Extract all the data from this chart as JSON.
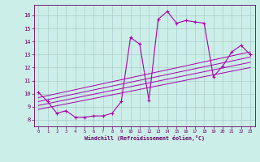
{
  "bg_color": "#cceee8",
  "grid_color": "#aacccc",
  "line_color": "#aa00aa",
  "xlim": [
    -0.5,
    23.5
  ],
  "ylim": [
    7.5,
    16.8
  ],
  "xticks": [
    0,
    1,
    2,
    3,
    4,
    5,
    6,
    7,
    8,
    9,
    10,
    11,
    12,
    13,
    14,
    15,
    16,
    17,
    18,
    19,
    20,
    21,
    22,
    23
  ],
  "yticks": [
    8,
    9,
    10,
    11,
    12,
    13,
    14,
    15,
    16
  ],
  "curve_x": [
    0,
    1,
    2,
    3,
    4,
    5,
    6,
    7,
    8,
    9,
    10,
    11,
    12,
    13,
    14,
    15,
    16,
    17,
    18,
    19,
    20,
    21,
    22,
    23
  ],
  "curve_y": [
    10.1,
    9.4,
    8.5,
    8.7,
    8.2,
    8.2,
    8.3,
    8.3,
    8.5,
    9.4,
    14.3,
    13.8,
    9.5,
    15.7,
    16.3,
    15.4,
    15.6,
    15.5,
    15.4,
    11.3,
    12.1,
    13.2,
    13.7,
    13.0
  ],
  "trend_lines": [
    [
      [
        0,
        23
      ],
      [
        9.7,
        13.2
      ]
    ],
    [
      [
        0,
        23
      ],
      [
        9.4,
        12.8
      ]
    ],
    [
      [
        0,
        23
      ],
      [
        9.1,
        12.4
      ]
    ],
    [
      [
        0,
        23
      ],
      [
        8.8,
        12.0
      ]
    ]
  ],
  "xlabel": "Windchill (Refroidissement éolien,°C)",
  "tick_color": "#660066",
  "label_color": "#660066"
}
